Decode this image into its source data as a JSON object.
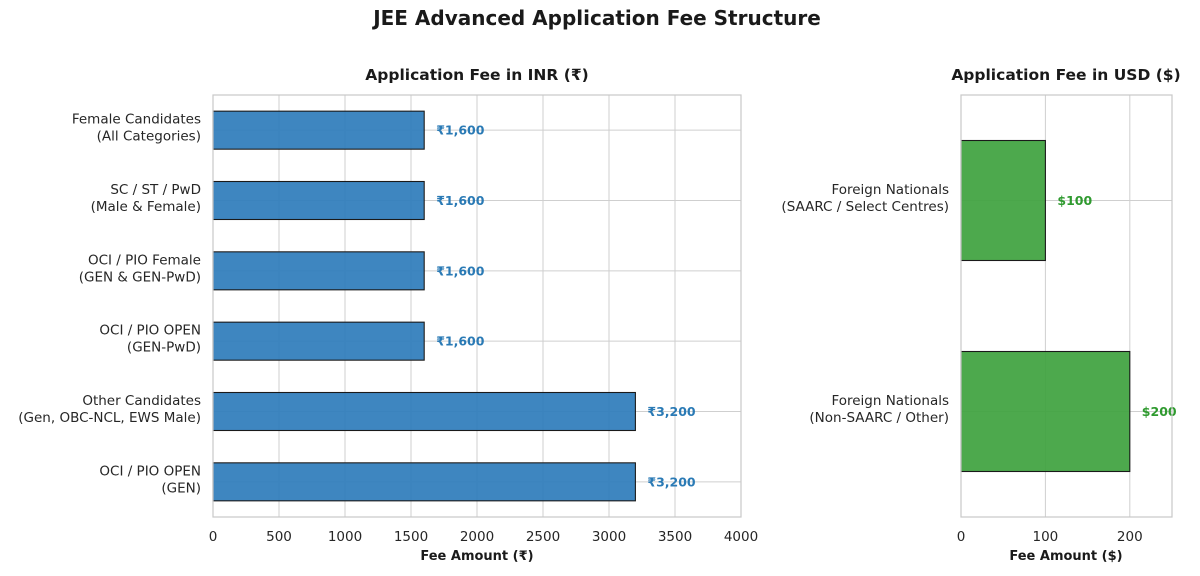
{
  "figure": {
    "title": "JEE Advanced Application Fee Structure"
  },
  "chart_data": [
    {
      "type": "bar",
      "orientation": "horizontal",
      "title": "Application Fee in INR (₹)",
      "xlabel": "Fee Amount (₹)",
      "categories": [
        [
          "Female Candidates",
          "(All Categories)"
        ],
        [
          "SC / ST / PwD",
          "(Male & Female)"
        ],
        [
          "OCI / PIO Female",
          "(GEN & GEN-PwD)"
        ],
        [
          "OCI / PIO OPEN",
          "(GEN-PwD)"
        ],
        [
          "Other Candidates",
          "(Gen, OBC-NCL, EWS Male)"
        ],
        [
          "OCI / PIO OPEN",
          "(GEN)"
        ]
      ],
      "values": [
        1600,
        1600,
        1600,
        1600,
        3200,
        3200
      ],
      "data_labels": [
        "₹1,600",
        "₹1,600",
        "₹1,600",
        "₹1,600",
        "₹3,200",
        "₹3,200"
      ],
      "xlim": [
        0,
        4000
      ],
      "xticks": [
        0,
        500,
        1000,
        1500,
        2000,
        2500,
        3000,
        3500,
        4000
      ],
      "xtick_labels": [
        "0",
        "500",
        "1000",
        "1500",
        "2000",
        "2500",
        "3000",
        "3500",
        "4000"
      ],
      "grid": true,
      "color": "#2f7dbb",
      "label_color": "#2a7ab5"
    },
    {
      "type": "bar",
      "orientation": "horizontal",
      "title": "Application Fee in USD ($)",
      "xlabel": "Fee Amount ($)",
      "categories": [
        [
          "Foreign Nationals",
          "(SAARC / Select Centres)"
        ],
        [
          "Foreign Nationals",
          "(Non-SAARC / Other)"
        ]
      ],
      "values": [
        100,
        200
      ],
      "data_labels": [
        "$100",
        "$200"
      ],
      "xlim": [
        0,
        250
      ],
      "xticks": [
        0,
        100,
        200
      ],
      "xtick_labels": [
        "0",
        "100",
        "200"
      ],
      "grid": true,
      "color": "#3fa33f",
      "label_color": "#2f9a2f"
    }
  ]
}
